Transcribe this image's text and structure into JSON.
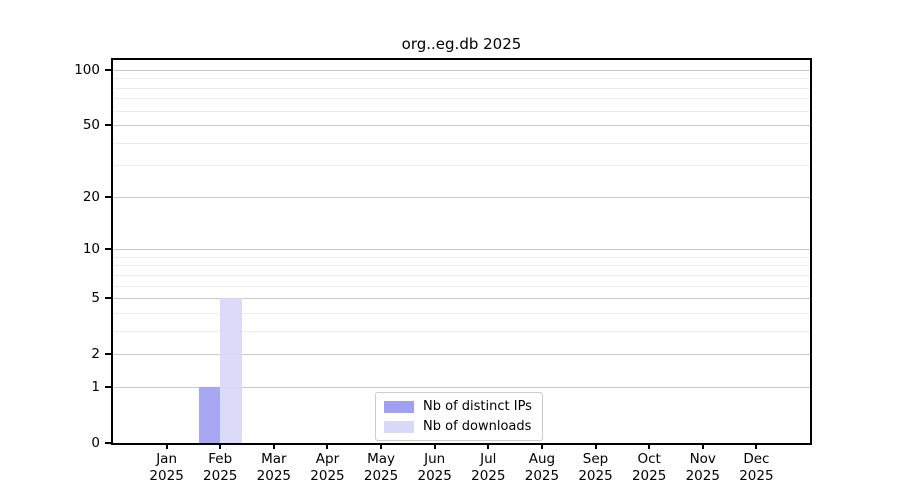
{
  "chart_data": {
    "type": "bar",
    "title": "org..eg.db 2025",
    "categories": [
      "Jan 2025",
      "Feb 2025",
      "Mar 2025",
      "Apr 2025",
      "May 2025",
      "Jun 2025",
      "Jul 2025",
      "Aug 2025",
      "Sep 2025",
      "Oct 2025",
      "Nov 2025",
      "Dec 2025"
    ],
    "series": [
      {
        "name": "Nb of distinct IPs",
        "color": "#a0a0f2",
        "values": [
          0,
          1,
          0,
          0,
          0,
          0,
          0,
          0,
          0,
          0,
          0,
          0
        ]
      },
      {
        "name": "Nb of downloads",
        "color": "#d8d8f8",
        "values": [
          0,
          5,
          0,
          0,
          0,
          0,
          0,
          0,
          0,
          0,
          0,
          0
        ]
      }
    ],
    "xlabel": "",
    "ylabel": "",
    "y_axis": {
      "scale": "log1p",
      "major_ticks": [
        0,
        1,
        2,
        5,
        10,
        20,
        50,
        100
      ],
      "minor_gridlines": [
        3,
        4,
        6,
        7,
        8,
        9,
        30,
        40,
        60,
        70,
        80,
        90
      ],
      "ylim": [
        0,
        113
      ]
    },
    "grid": "on",
    "legend_position": "lower center"
  },
  "colors": {
    "bar_distinct_ips": "#a0a0f2",
    "bar_downloads": "#d8d8f8",
    "major_grid": "#cacaca",
    "minor_grid": "#ededed",
    "axis": "#000000",
    "legend_border": "#cccccc",
    "background": "#ffffff"
  }
}
